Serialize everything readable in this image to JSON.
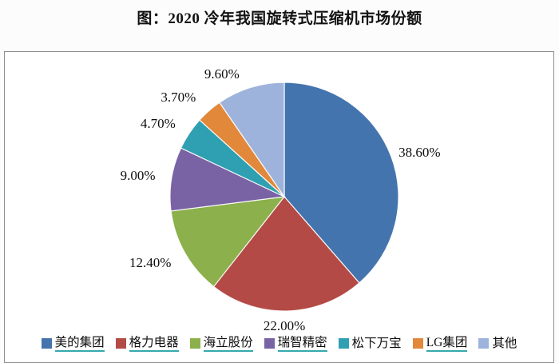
{
  "chart_data": {
    "type": "pie",
    "title": "图：2020 冷年我国旋转式压缩机市场份额",
    "categories": [
      "美的集团",
      "格力电器",
      "海立股份",
      "瑞智精密",
      "松下万宝",
      "LG集团",
      "其他"
    ],
    "values": [
      38.6,
      22.0,
      12.4,
      9.0,
      4.7,
      3.7,
      9.6
    ],
    "value_labels": [
      "38.60%",
      "22.00%",
      "12.40%",
      "9.00%",
      "4.70%",
      "3.70%",
      "9.60%"
    ],
    "colors": [
      "#4474AD",
      "#B34A45",
      "#8CB04B",
      "#7A63A4",
      "#2FA0B1",
      "#E1883B",
      "#9EB3DB"
    ],
    "legend_underline": [
      true,
      true,
      true,
      true,
      false,
      true,
      false
    ],
    "underline_color": "#35A9AE",
    "start_angle_deg": 0,
    "direction": "clockwise",
    "legend_position": "bottom",
    "legend_marker": "square"
  }
}
